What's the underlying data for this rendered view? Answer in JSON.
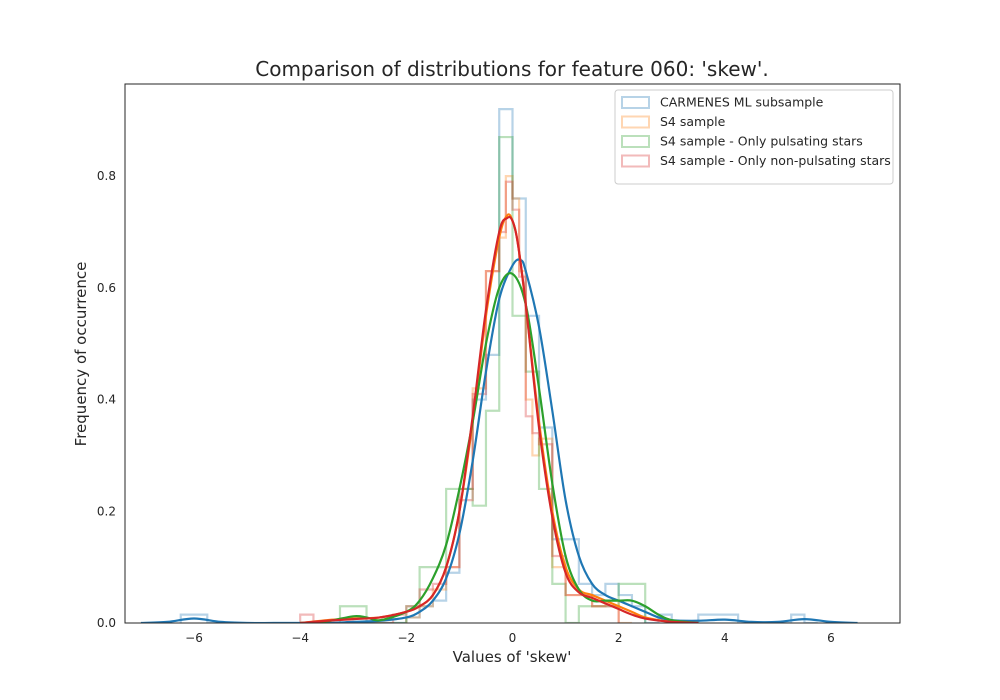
{
  "chart_data": {
    "type": "histogram+kde",
    "title": "Comparison of distributions for feature 060: 'skew'.",
    "xlabel": "Values of 'skew'",
    "ylabel": "Frequency of occurrence",
    "xlim": [
      -7.3,
      7.3
    ],
    "ylim": [
      0,
      0.965
    ],
    "xticks": [
      -6,
      -4,
      -2,
      0,
      2,
      4,
      6
    ],
    "xtick_labels": [
      "−6",
      "−4",
      "−2",
      "0",
      "2",
      "4",
      "6"
    ],
    "yticks": [
      0.0,
      0.2,
      0.4,
      0.6,
      0.8
    ],
    "ytick_labels": [
      "0.0",
      "0.2",
      "0.4",
      "0.6",
      "0.8"
    ],
    "legend_position": "top-right",
    "series": [
      {
        "name": "CARMENES ML subsample",
        "color": "#1f77b4",
        "hist": {
          "bin_edges": [
            -6.25,
            -6.0,
            -5.75,
            -2.0,
            -1.75,
            -1.5,
            -1.25,
            -1.0,
            -0.75,
            -0.5,
            -0.25,
            0.0,
            0.25,
            0.5,
            0.75,
            1.0,
            1.25,
            1.5,
            1.75,
            2.0,
            2.25,
            2.5,
            2.75,
            3.0,
            3.25,
            3.5,
            3.75,
            4.0,
            4.25,
            4.5,
            5.25,
            5.5,
            5.75
          ],
          "heights": [
            0.015,
            0.015,
            0,
            0.01,
            0.03,
            0.04,
            0.09,
            0.24,
            0.4,
            0.48,
            0.92,
            0.76,
            0.55,
            0.35,
            0.15,
            0.15,
            0.07,
            0.05,
            0.07,
            0.05,
            0.03,
            0.0,
            0.015,
            0.0,
            0.0,
            0.015,
            0.015,
            0.015,
            0,
            0,
            0.015,
            0.0
          ]
        },
        "kde": {
          "x": [
            -7.0,
            -6.5,
            -6.0,
            -5.5,
            -5.0,
            -4.5,
            -4.0,
            -3.5,
            -3.0,
            -2.5,
            -2.0,
            -1.75,
            -1.5,
            -1.25,
            -1.0,
            -0.75,
            -0.5,
            -0.25,
            0.0,
            0.15,
            0.25,
            0.5,
            0.75,
            1.0,
            1.25,
            1.5,
            1.75,
            2.0,
            2.25,
            2.5,
            2.75,
            3.0,
            3.5,
            4.0,
            4.5,
            5.0,
            5.5,
            6.0,
            6.5
          ],
          "y": [
            0.0,
            0.002,
            0.008,
            0.002,
            0.0,
            0.0,
            0.0,
            0.0,
            0.002,
            0.004,
            0.01,
            0.02,
            0.04,
            0.08,
            0.16,
            0.29,
            0.45,
            0.58,
            0.64,
            0.65,
            0.63,
            0.53,
            0.38,
            0.22,
            0.12,
            0.07,
            0.05,
            0.04,
            0.03,
            0.02,
            0.01,
            0.005,
            0.004,
            0.006,
            0.002,
            0.002,
            0.007,
            0.002,
            0.0
          ]
        }
      },
      {
        "name": "S4 sample",
        "color": "#ff7f0e",
        "hist": {
          "bin_edges": [
            -2.0,
            -1.75,
            -1.5,
            -1.25,
            -1.0,
            -0.75,
            -0.5,
            -0.25,
            -0.125,
            0.0,
            0.125,
            0.25,
            0.375,
            0.5,
            0.75,
            1.0,
            1.5,
            1.75,
            2.0,
            2.25
          ],
          "heights": [
            0.01,
            0.03,
            0.06,
            0.1,
            0.24,
            0.42,
            0.63,
            0.69,
            0.8,
            0.76,
            0.63,
            0.4,
            0.3,
            0.33,
            0.1,
            0.05,
            0.03,
            0.04,
            0.0
          ]
        },
        "kde": {
          "x": [
            -4.0,
            -3.5,
            -3.0,
            -2.5,
            -2.0,
            -1.75,
            -1.5,
            -1.25,
            -1.0,
            -0.75,
            -0.5,
            -0.25,
            -0.1,
            0.0,
            0.1,
            0.25,
            0.5,
            0.75,
            1.0,
            1.25,
            1.5,
            1.75,
            2.0,
            2.25,
            2.5,
            3.0,
            3.5
          ],
          "y": [
            0.0,
            0.005,
            0.008,
            0.01,
            0.02,
            0.03,
            0.05,
            0.1,
            0.2,
            0.36,
            0.55,
            0.69,
            0.73,
            0.72,
            0.68,
            0.57,
            0.36,
            0.2,
            0.1,
            0.06,
            0.05,
            0.04,
            0.03,
            0.02,
            0.01,
            0.002,
            0.0
          ]
        }
      },
      {
        "name": "S4 sample - Only pulsating stars",
        "color": "#2ca02c",
        "hist": {
          "bin_edges": [
            -3.25,
            -3.0,
            -2.75,
            -2.0,
            -1.75,
            -1.5,
            -1.25,
            -1.0,
            -0.75,
            -0.5,
            -0.25,
            0.0,
            0.25,
            0.5,
            0.75,
            1.0,
            1.25,
            1.5,
            1.75,
            2.0,
            2.25,
            2.5
          ],
          "heights": [
            0.03,
            0.03,
            0,
            0.03,
            0.1,
            0.1,
            0.24,
            0.24,
            0.21,
            0.38,
            0.87,
            0.55,
            0.45,
            0.24,
            0.07,
            0.0,
            0.03,
            0.03,
            0.03,
            0.07,
            0.07
          ]
        },
        "kde": {
          "x": [
            -4.0,
            -3.5,
            -3.0,
            -2.75,
            -2.5,
            -2.0,
            -1.75,
            -1.5,
            -1.25,
            -1.0,
            -0.75,
            -0.5,
            -0.25,
            0.0,
            0.25,
            0.5,
            0.75,
            1.0,
            1.25,
            1.5,
            1.75,
            2.0,
            2.25,
            2.5,
            2.75,
            3.0,
            3.5
          ],
          "y": [
            0.0,
            0.003,
            0.012,
            0.01,
            0.005,
            0.02,
            0.04,
            0.08,
            0.14,
            0.24,
            0.36,
            0.5,
            0.6,
            0.625,
            0.57,
            0.42,
            0.25,
            0.12,
            0.06,
            0.04,
            0.04,
            0.04,
            0.04,
            0.03,
            0.015,
            0.005,
            0.0
          ]
        }
      },
      {
        "name": "S4 sample - Only non-pulsating stars",
        "color": "#d62728",
        "hist": {
          "bin_edges": [
            -4.0,
            -3.75,
            -3.5,
            -2.25,
            -2.0,
            -1.75,
            -1.5,
            -1.25,
            -1.0,
            -0.75,
            -0.5,
            -0.25,
            -0.125,
            0.0,
            0.125,
            0.25,
            0.375,
            0.5,
            0.75,
            1.0,
            1.5,
            1.75,
            2.0
          ],
          "heights": [
            0.015,
            0.0,
            0,
            0.015,
            0.03,
            0.06,
            0.07,
            0.1,
            0.22,
            0.41,
            0.63,
            0.7,
            0.79,
            0.74,
            0.62,
            0.37,
            0.34,
            0.32,
            0.12,
            0.05,
            0.03,
            0.03
          ]
        },
        "kde": {
          "x": [
            -4.0,
            -3.5,
            -3.0,
            -2.5,
            -2.0,
            -1.75,
            -1.5,
            -1.25,
            -1.0,
            -0.75,
            -0.5,
            -0.25,
            -0.1,
            0.0,
            0.1,
            0.25,
            0.5,
            0.75,
            1.0,
            1.25,
            1.5,
            1.75,
            2.0,
            2.25,
            2.5,
            3.0,
            3.5
          ],
          "y": [
            0.0,
            0.004,
            0.007,
            0.01,
            0.02,
            0.03,
            0.05,
            0.1,
            0.2,
            0.37,
            0.56,
            0.7,
            0.725,
            0.72,
            0.68,
            0.57,
            0.35,
            0.19,
            0.09,
            0.055,
            0.045,
            0.035,
            0.025,
            0.015,
            0.008,
            0.002,
            0.0
          ]
        }
      }
    ]
  }
}
